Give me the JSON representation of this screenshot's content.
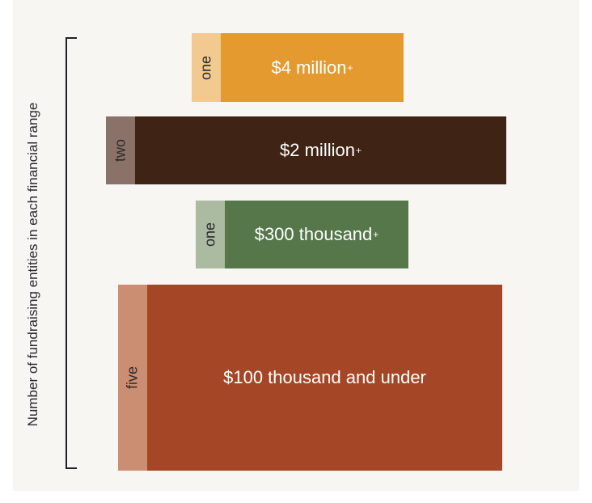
{
  "chart_data": {
    "type": "bar",
    "ylabel": "Number of fundraising entities in each financial range",
    "categories": [
      "$4 million+",
      "$2 million+",
      "$300 thousand+",
      "$100 thousand and under"
    ],
    "values": [
      1,
      2,
      1,
      5
    ],
    "value_labels": [
      "one",
      "two",
      "one",
      "five"
    ],
    "series_colors": [
      "#e59a2f",
      "#3f2314",
      "#56774a",
      "#a54726"
    ],
    "count_colors": [
      "#f2c98f",
      "#8a7268",
      "#aabba2",
      "#cc8e73"
    ]
  }
}
